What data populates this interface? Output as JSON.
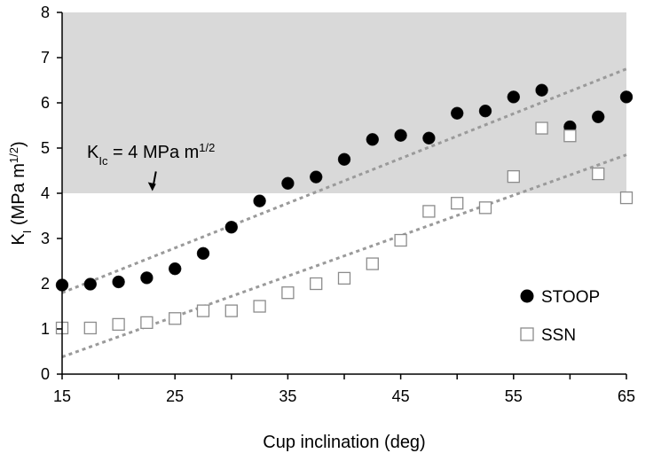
{
  "chart_data": {
    "type": "scatter",
    "title": "",
    "xlabel": "Cup inclination (deg)",
    "ylabel": {
      "base": "K",
      "sub": "I",
      "rest": " (MPa m",
      "sup": "1/2",
      "close": ")"
    },
    "xlim": [
      15,
      65
    ],
    "ylim": [
      0,
      8
    ],
    "xticks": [
      "15",
      "25",
      "35",
      "45",
      "55",
      "65"
    ],
    "yticks": [
      "0",
      "1",
      "2",
      "3",
      "4",
      "5",
      "6",
      "7",
      "8"
    ],
    "grid": false,
    "shaded_region": {
      "y_from": 4,
      "y_to": 8,
      "color": "#d9d9d9"
    },
    "annotation": {
      "base": "K",
      "sub": "Ic",
      "rest": " = 4 MPa m",
      "sup": "1/2",
      "arrow_to": [
        23,
        4.05
      ]
    },
    "legend_position": "right",
    "series": [
      {
        "name": "STOOP",
        "marker": "filled-circle",
        "x": [
          15,
          17.5,
          20,
          22.5,
          25,
          27.5,
          30,
          32.5,
          35,
          37.5,
          40,
          42.5,
          45,
          47.5,
          50,
          52.5,
          55,
          57.5,
          60,
          62.5,
          65
        ],
        "y": [
          1.97,
          1.99,
          2.04,
          2.13,
          2.33,
          2.67,
          3.25,
          3.83,
          4.22,
          4.36,
          4.75,
          5.19,
          5.28,
          5.22,
          5.77,
          5.82,
          6.13,
          6.28,
          5.47,
          5.69,
          6.13
        ],
        "trendline": {
          "x": [
            15,
            65
          ],
          "y": [
            1.8,
            6.75
          ]
        }
      },
      {
        "name": "SSN",
        "marker": "open-square",
        "x": [
          15,
          17.5,
          20,
          22.5,
          25,
          27.5,
          30,
          32.5,
          35,
          37.5,
          40,
          42.5,
          45,
          47.5,
          50,
          52.5,
          55,
          57.5,
          60,
          62.5,
          65
        ],
        "y": [
          1.02,
          1.02,
          1.1,
          1.14,
          1.23,
          1.4,
          1.4,
          1.5,
          1.8,
          2.0,
          2.12,
          2.44,
          2.96,
          3.6,
          3.78,
          3.68,
          4.37,
          5.44,
          5.27,
          4.43,
          3.9
        ],
        "trendline": {
          "x": [
            15,
            65
          ],
          "y": [
            0.38,
            4.85
          ]
        }
      }
    ],
    "colors": {
      "stoop_fill": "#000000",
      "ssn_stroke": "#8c8c8c",
      "trend": "#9a9a9a",
      "axis": "#000000"
    }
  }
}
